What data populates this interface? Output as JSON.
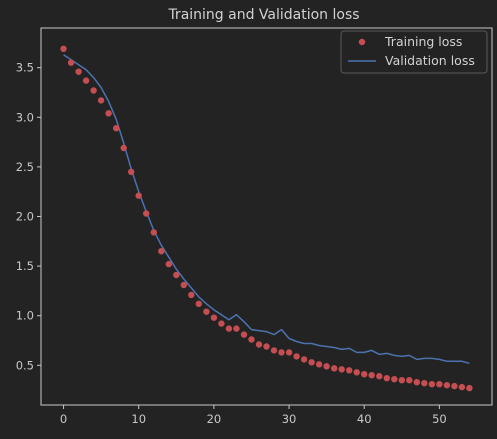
{
  "chart_data": {
    "type": "line",
    "title": "Training and Validation loss",
    "xlabel": "",
    "ylabel": "",
    "xlim": [
      -3,
      57
    ],
    "ylim": [
      0.1,
      3.9
    ],
    "x_ticks": [
      0,
      10,
      20,
      30,
      40,
      50
    ],
    "y_ticks": [
      0.5,
      1.0,
      1.5,
      2.0,
      2.5,
      3.0,
      3.5
    ],
    "x_tick_labels": [
      "0",
      "10",
      "20",
      "30",
      "40",
      "50"
    ],
    "y_tick_labels": [
      "0.5",
      "1.0",
      "1.5",
      "2.0",
      "2.5",
      "3.0",
      "3.5"
    ],
    "grid": false,
    "legend_position": "top-right",
    "x": [
      0,
      1,
      2,
      3,
      4,
      5,
      6,
      7,
      8,
      9,
      10,
      11,
      12,
      13,
      14,
      15,
      16,
      17,
      18,
      19,
      20,
      21,
      22,
      23,
      24,
      25,
      26,
      27,
      28,
      29,
      30,
      31,
      32,
      33,
      34,
      35,
      36,
      37,
      38,
      39,
      40,
      41,
      42,
      43,
      44,
      45,
      46,
      47,
      48,
      49,
      50,
      51,
      52,
      53,
      54
    ],
    "series": [
      {
        "name": "Training loss",
        "style": "dots",
        "color": "#c44e52",
        "values": [
          3.69,
          3.55,
          3.46,
          3.37,
          3.27,
          3.17,
          3.04,
          2.89,
          2.69,
          2.45,
          2.21,
          2.03,
          1.84,
          1.65,
          1.52,
          1.41,
          1.31,
          1.21,
          1.12,
          1.04,
          0.98,
          0.92,
          0.87,
          0.87,
          0.81,
          0.76,
          0.71,
          0.69,
          0.65,
          0.63,
          0.63,
          0.59,
          0.56,
          0.53,
          0.51,
          0.49,
          0.47,
          0.46,
          0.45,
          0.43,
          0.41,
          0.4,
          0.39,
          0.37,
          0.36,
          0.35,
          0.35,
          0.33,
          0.32,
          0.31,
          0.31,
          0.3,
          0.29,
          0.28,
          0.27
        ]
      },
      {
        "name": "Validation loss",
        "style": "line",
        "color": "#4c72b0",
        "values": [
          3.63,
          3.58,
          3.53,
          3.48,
          3.4,
          3.3,
          3.16,
          2.98,
          2.74,
          2.48,
          2.25,
          2.05,
          1.86,
          1.71,
          1.59,
          1.47,
          1.37,
          1.28,
          1.19,
          1.12,
          1.06,
          1.01,
          0.96,
          1.01,
          0.94,
          0.86,
          0.85,
          0.84,
          0.81,
          0.86,
          0.77,
          0.74,
          0.72,
          0.72,
          0.7,
          0.69,
          0.68,
          0.66,
          0.67,
          0.63,
          0.63,
          0.65,
          0.61,
          0.62,
          0.6,
          0.59,
          0.6,
          0.56,
          0.57,
          0.57,
          0.56,
          0.54,
          0.54,
          0.54,
          0.52
        ]
      }
    ]
  }
}
